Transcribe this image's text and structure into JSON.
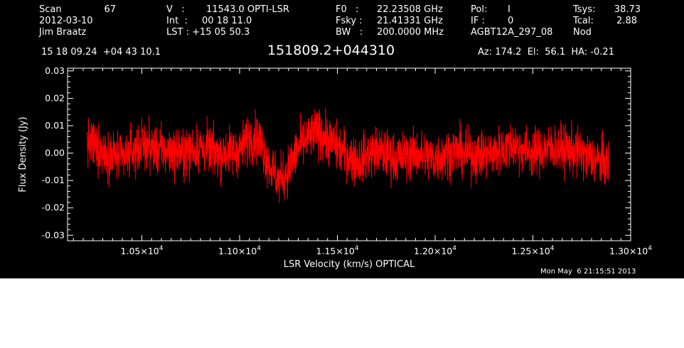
{
  "header": {
    "scan_label": "Scan",
    "scan_number": "67",
    "date": "2012-03-10",
    "observer": "Jim Braatz",
    "v_label": "V   :",
    "v_value": "11543.0 OPTI-LSR",
    "int_label": "Int  :",
    "int_value": "00 18 11.0",
    "lst_label": "LST : +15 05 50.3",
    "f0_label": "F0   :",
    "f0_value": "22.23508 GHz",
    "fsky_label": "Fsky :",
    "fsky_value": "21.41331 GHz",
    "bw_label": "BW   :",
    "bw_value": "200.0000 MHz",
    "pol_label": "Pol:",
    "pol_value": "I",
    "if_label": "IF :",
    "if_value": "0",
    "project": "AGBT12A_297_08",
    "tsys_label": "Tsys:",
    "tsys_value": "38.73",
    "tcal_label": "Tcal:",
    "tcal_value": "2.88",
    "proc": "Nod",
    "coords": "15 18 09.24  +04 43 10.1",
    "source": "151809.2+044310",
    "az_el_ha": "Az: 174.2  El:  56.1  HA: -0.21"
  },
  "footer": {
    "timestamp": "Mon May  6 21:15:51 2013"
  },
  "colors": {
    "background": "#000000",
    "axes": "#ffffff",
    "trace": "#ff0000"
  },
  "chart_data": {
    "type": "line",
    "title": "151809.2+044310",
    "xlabel": "LSR Velocity (km/s) OPTICAL",
    "ylabel": "Flux Density (Jy)",
    "xlim": [
      10120,
      13000
    ],
    "ylim": [
      -0.032,
      0.031
    ],
    "x_tick_values": [
      10500,
      11000,
      11500,
      12000,
      12500,
      13000
    ],
    "x_tick_labels": [
      "1.05×10",
      "1.10×10",
      "1.15×10",
      "1.20×10",
      "1.25×10",
      "1.30×10"
    ],
    "x_tick_exponent": "4",
    "y_tick_values": [
      -0.03,
      -0.02,
      -0.01,
      0.0,
      0.01,
      0.02,
      0.03
    ],
    "y_tick_labels": [
      "-0.03",
      "-0.02",
      "-0.01",
      "0.00",
      "0.01",
      "0.02",
      "0.03"
    ],
    "grid": false,
    "series": [
      {
        "color": "#ff0000",
        "x_start": 10220,
        "x_end": 12890,
        "envelope_x": [
          10220,
          10300,
          10400,
          10500,
          10600,
          10700,
          10800,
          10900,
          11000,
          11050,
          11100,
          11150,
          11200,
          11250,
          11300,
          11400,
          11500,
          11600,
          11700,
          11800,
          11900,
          12000,
          12100,
          12200,
          12300,
          12400,
          12500,
          12600,
          12700,
          12800,
          12890
        ],
        "envelope_mean": [
          0.004,
          0.001,
          -0.002,
          0.003,
          0.001,
          0.0,
          0.002,
          0.0,
          0.001,
          0.006,
          0.005,
          -0.004,
          -0.01,
          -0.006,
          0.002,
          0.008,
          0.002,
          -0.003,
          0.001,
          -0.002,
          0.0,
          -0.002,
          0.001,
          -0.001,
          0.0,
          0.003,
          0.0,
          0.002,
          0.001,
          -0.002,
          -0.004
        ],
        "noise_rms": 0.0045,
        "approx_range": [
          -0.022,
          0.019
        ]
      }
    ]
  }
}
